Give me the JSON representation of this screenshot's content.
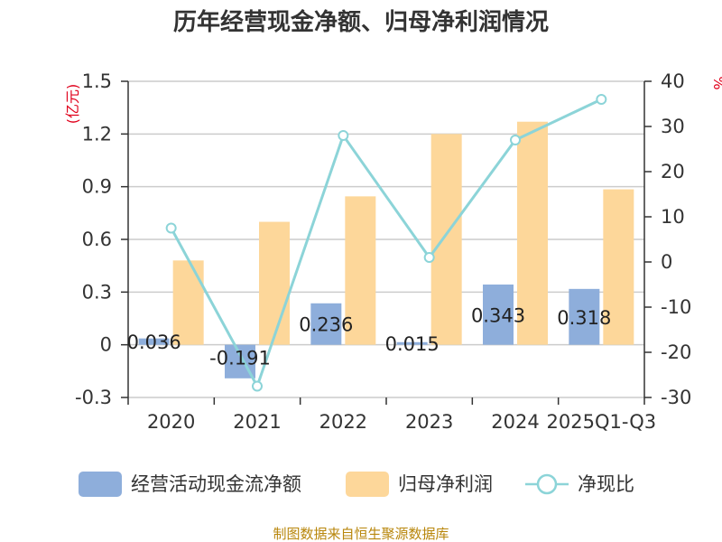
{
  "chart_data": {
    "type": "bar",
    "title": "历年经营现金净额、归母净利润情况",
    "categories": [
      "2020",
      "2021",
      "2022",
      "2023",
      "2024",
      "2025Q1-Q3"
    ],
    "series": [
      {
        "name": "经营活动现金流净额",
        "axis": "left",
        "kind": "bar",
        "color": "#8eaedb",
        "values": [
          0.036,
          -0.191,
          0.236,
          0.015,
          0.343,
          0.318
        ],
        "labels": [
          "0.036",
          "-0.191",
          "0.236",
          "0.015",
          "0.343",
          "0.318"
        ]
      },
      {
        "name": "归母净利润",
        "axis": "left",
        "kind": "bar",
        "color": "#fdd79a",
        "values": [
          0.48,
          0.7,
          0.845,
          1.2,
          1.27,
          0.885
        ]
      },
      {
        "name": "净现比",
        "axis": "right",
        "kind": "line",
        "color": "#8cd4d8",
        "values": [
          7.5,
          -27.5,
          28,
          1,
          27,
          36
        ]
      }
    ],
    "y_left": {
      "unit": "(亿元)",
      "min": -0.3,
      "max": 1.5,
      "ticks": [
        -0.3,
        0,
        0.3,
        0.6,
        0.9,
        1.2,
        1.5
      ],
      "tick_labels": [
        "-0.3",
        "0",
        "0.3",
        "0.6",
        "0.9",
        "1.2",
        "1.5"
      ]
    },
    "y_right": {
      "unit": "%",
      "min": -30,
      "max": 40,
      "ticks": [
        -30,
        -20,
        -10,
        0,
        10,
        20,
        30,
        40
      ],
      "tick_labels": [
        "-30",
        "-20",
        "-10",
        "0",
        "10",
        "20",
        "30",
        "40"
      ]
    },
    "legend_position": "bottom",
    "source": "制图数据来自恒生聚源数据库"
  }
}
